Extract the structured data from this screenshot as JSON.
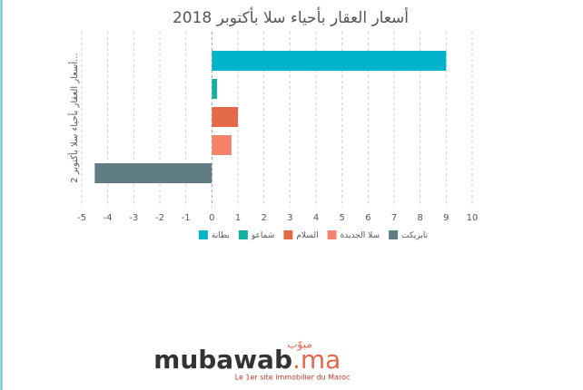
{
  "chart_data": {
    "type": "bar",
    "orientation": "horizontal",
    "title": "أسعار العقار بأحياء سلا بأكتوبر 2018",
    "categories": [
      "أسعار العقار بأحياء سلا بأكتوبر 2..."
    ],
    "series": [
      {
        "name": "بطانة",
        "color": "#00b4cc",
        "values": [
          9
        ]
      },
      {
        "name": "شماعو",
        "color": "#14b0a4",
        "values": [
          0.2
        ]
      },
      {
        "name": "السلام",
        "color": "#e4694b",
        "values": [
          1
        ]
      },
      {
        "name": "سلا الجديدة",
        "color": "#f7826b",
        "values": [
          0.75
        ]
      },
      {
        "name": "تابريكت",
        "color": "#607d86",
        "values": [
          -4.5
        ]
      }
    ],
    "xlim": [
      -5,
      10
    ],
    "xticks": [
      -5,
      -4,
      -3,
      -2,
      -1,
      0,
      1,
      2,
      3,
      4,
      5,
      6,
      7,
      8,
      9,
      10
    ],
    "grid": true,
    "legend": "bottom"
  },
  "branding": {
    "arabic": "مبوّب",
    "name": "mubawab",
    "suffix": ".ma",
    "tagline": "Le 1er site immobilier du Maroc"
  }
}
